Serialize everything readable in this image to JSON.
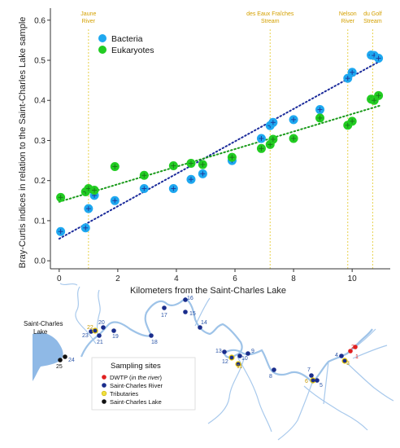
{
  "chart_data": {
    "type": "scatter",
    "title": "",
    "xlabel": "Kilometers from the Saint-Charles Lake",
    "ylabel": "Bray-Curtis indices in relation to the Saint-Charles Lake sample",
    "xlim": [
      -0.3,
      11.3
    ],
    "ylim": [
      -0.02,
      0.63
    ],
    "x_ticks": [
      "0",
      "2",
      "4",
      "6",
      "8",
      "10"
    ],
    "y_ticks": [
      "0.0",
      "0.1",
      "0.2",
      "0.3",
      "0.4",
      "0.5",
      "0.6"
    ],
    "legend": {
      "position": "top-left"
    },
    "grid": false,
    "series": [
      {
        "name": "Bacteria",
        "color": "#1ea8f0",
        "x": [
          0.05,
          0.9,
          1.0,
          1.2,
          1.9,
          2.9,
          3.9,
          4.5,
          4.9,
          5.9,
          6.9,
          7.2,
          7.3,
          8.0,
          8.9,
          9.85,
          10.0,
          10.65,
          10.75,
          10.9
        ],
        "y": [
          0.073,
          0.082,
          0.13,
          0.163,
          0.15,
          0.18,
          0.18,
          0.203,
          0.217,
          0.25,
          0.305,
          0.337,
          0.345,
          0.352,
          0.377,
          0.455,
          0.47,
          0.513,
          0.512,
          0.505
        ],
        "trend": [
          [
            0,
            0.055
          ],
          [
            11.0,
            0.5
          ]
        ]
      },
      {
        "name": "Eukaryotes",
        "color": "#22cc22",
        "x": [
          0.05,
          0.9,
          1.0,
          1.2,
          1.9,
          2.9,
          3.9,
          4.5,
          4.9,
          5.9,
          6.9,
          7.2,
          7.3,
          8.0,
          8.9,
          9.85,
          10.0,
          10.65,
          10.75,
          10.9
        ],
        "y": [
          0.158,
          0.172,
          0.18,
          0.176,
          0.235,
          0.213,
          0.237,
          0.243,
          0.24,
          0.258,
          0.28,
          0.29,
          0.303,
          0.305,
          0.356,
          0.338,
          0.348,
          0.403,
          0.4,
          0.412
        ],
        "trend": [
          [
            0,
            0.147
          ],
          [
            11.0,
            0.388
          ]
        ]
      }
    ],
    "annotations": [
      {
        "lines": [
          "Jaune",
          "River"
        ],
        "x": 1.0
      },
      {
        "lines": [
          "des Eaux Fraîches",
          "Stream"
        ],
        "x": 7.2
      },
      {
        "lines": [
          "Nelson",
          "River"
        ],
        "x": 9.85
      },
      {
        "lines": [
          "du Golf",
          "Stream"
        ],
        "x": 10.7
      }
    ]
  },
  "map": {
    "lake_label_line1": "Saint-Charles",
    "lake_label_line2": "Lake",
    "legend_title": "Sampling sites",
    "legend_items": [
      {
        "label_main": "DWTP (",
        "label_italic": "in the river",
        "label_end": ")",
        "color": "#e02020"
      },
      {
        "label_main": "Saint-Charles River",
        "label_italic": "",
        "label_end": "",
        "color": "#1a2d8c"
      },
      {
        "label_main": "Tributaries",
        "label_italic": "",
        "label_end": "",
        "color": "#f0e040"
      },
      {
        "label_main": "Saint-Charles Lake",
        "label_italic": "",
        "label_end": "",
        "color": "#111111"
      }
    ],
    "colors": {
      "river": "#9ec3e8",
      "lake": "#8fb9e6",
      "river_site": "#1a2d8c",
      "tributary_ring": "#e8c800",
      "dwtp": "#e02020",
      "lake_site": "#111111"
    },
    "sites": [
      {
        "label": "25",
        "kind": "lake"
      },
      {
        "label": "24",
        "kind": "lake"
      },
      {
        "label": "23",
        "kind": "river"
      },
      {
        "label": "22",
        "kind": "tributary"
      },
      {
        "label": "20",
        "kind": "river"
      },
      {
        "label": "21",
        "kind": "river"
      },
      {
        "label": "19",
        "kind": "river"
      },
      {
        "label": "18",
        "kind": "river"
      },
      {
        "label": "17",
        "kind": "river"
      },
      {
        "label": "16",
        "kind": "river"
      },
      {
        "label": "15",
        "kind": "river"
      },
      {
        "label": "14",
        "kind": "river"
      },
      {
        "label": "13",
        "kind": "river"
      },
      {
        "label": "12",
        "kind": "tributary"
      },
      {
        "label": "11",
        "kind": "river"
      },
      {
        "label": "10",
        "kind": "river"
      },
      {
        "label": "9",
        "kind": "river"
      },
      {
        "label": "8",
        "kind": "river"
      },
      {
        "label": "7",
        "kind": "river"
      },
      {
        "label": "6",
        "kind": "tributary"
      },
      {
        "label": "5",
        "kind": "river"
      },
      {
        "label": "4",
        "kind": "river"
      },
      {
        "label": "3",
        "kind": "tributary"
      },
      {
        "label": "2",
        "kind": "dwtp"
      },
      {
        "label": "1",
        "kind": "dwtp"
      }
    ]
  }
}
